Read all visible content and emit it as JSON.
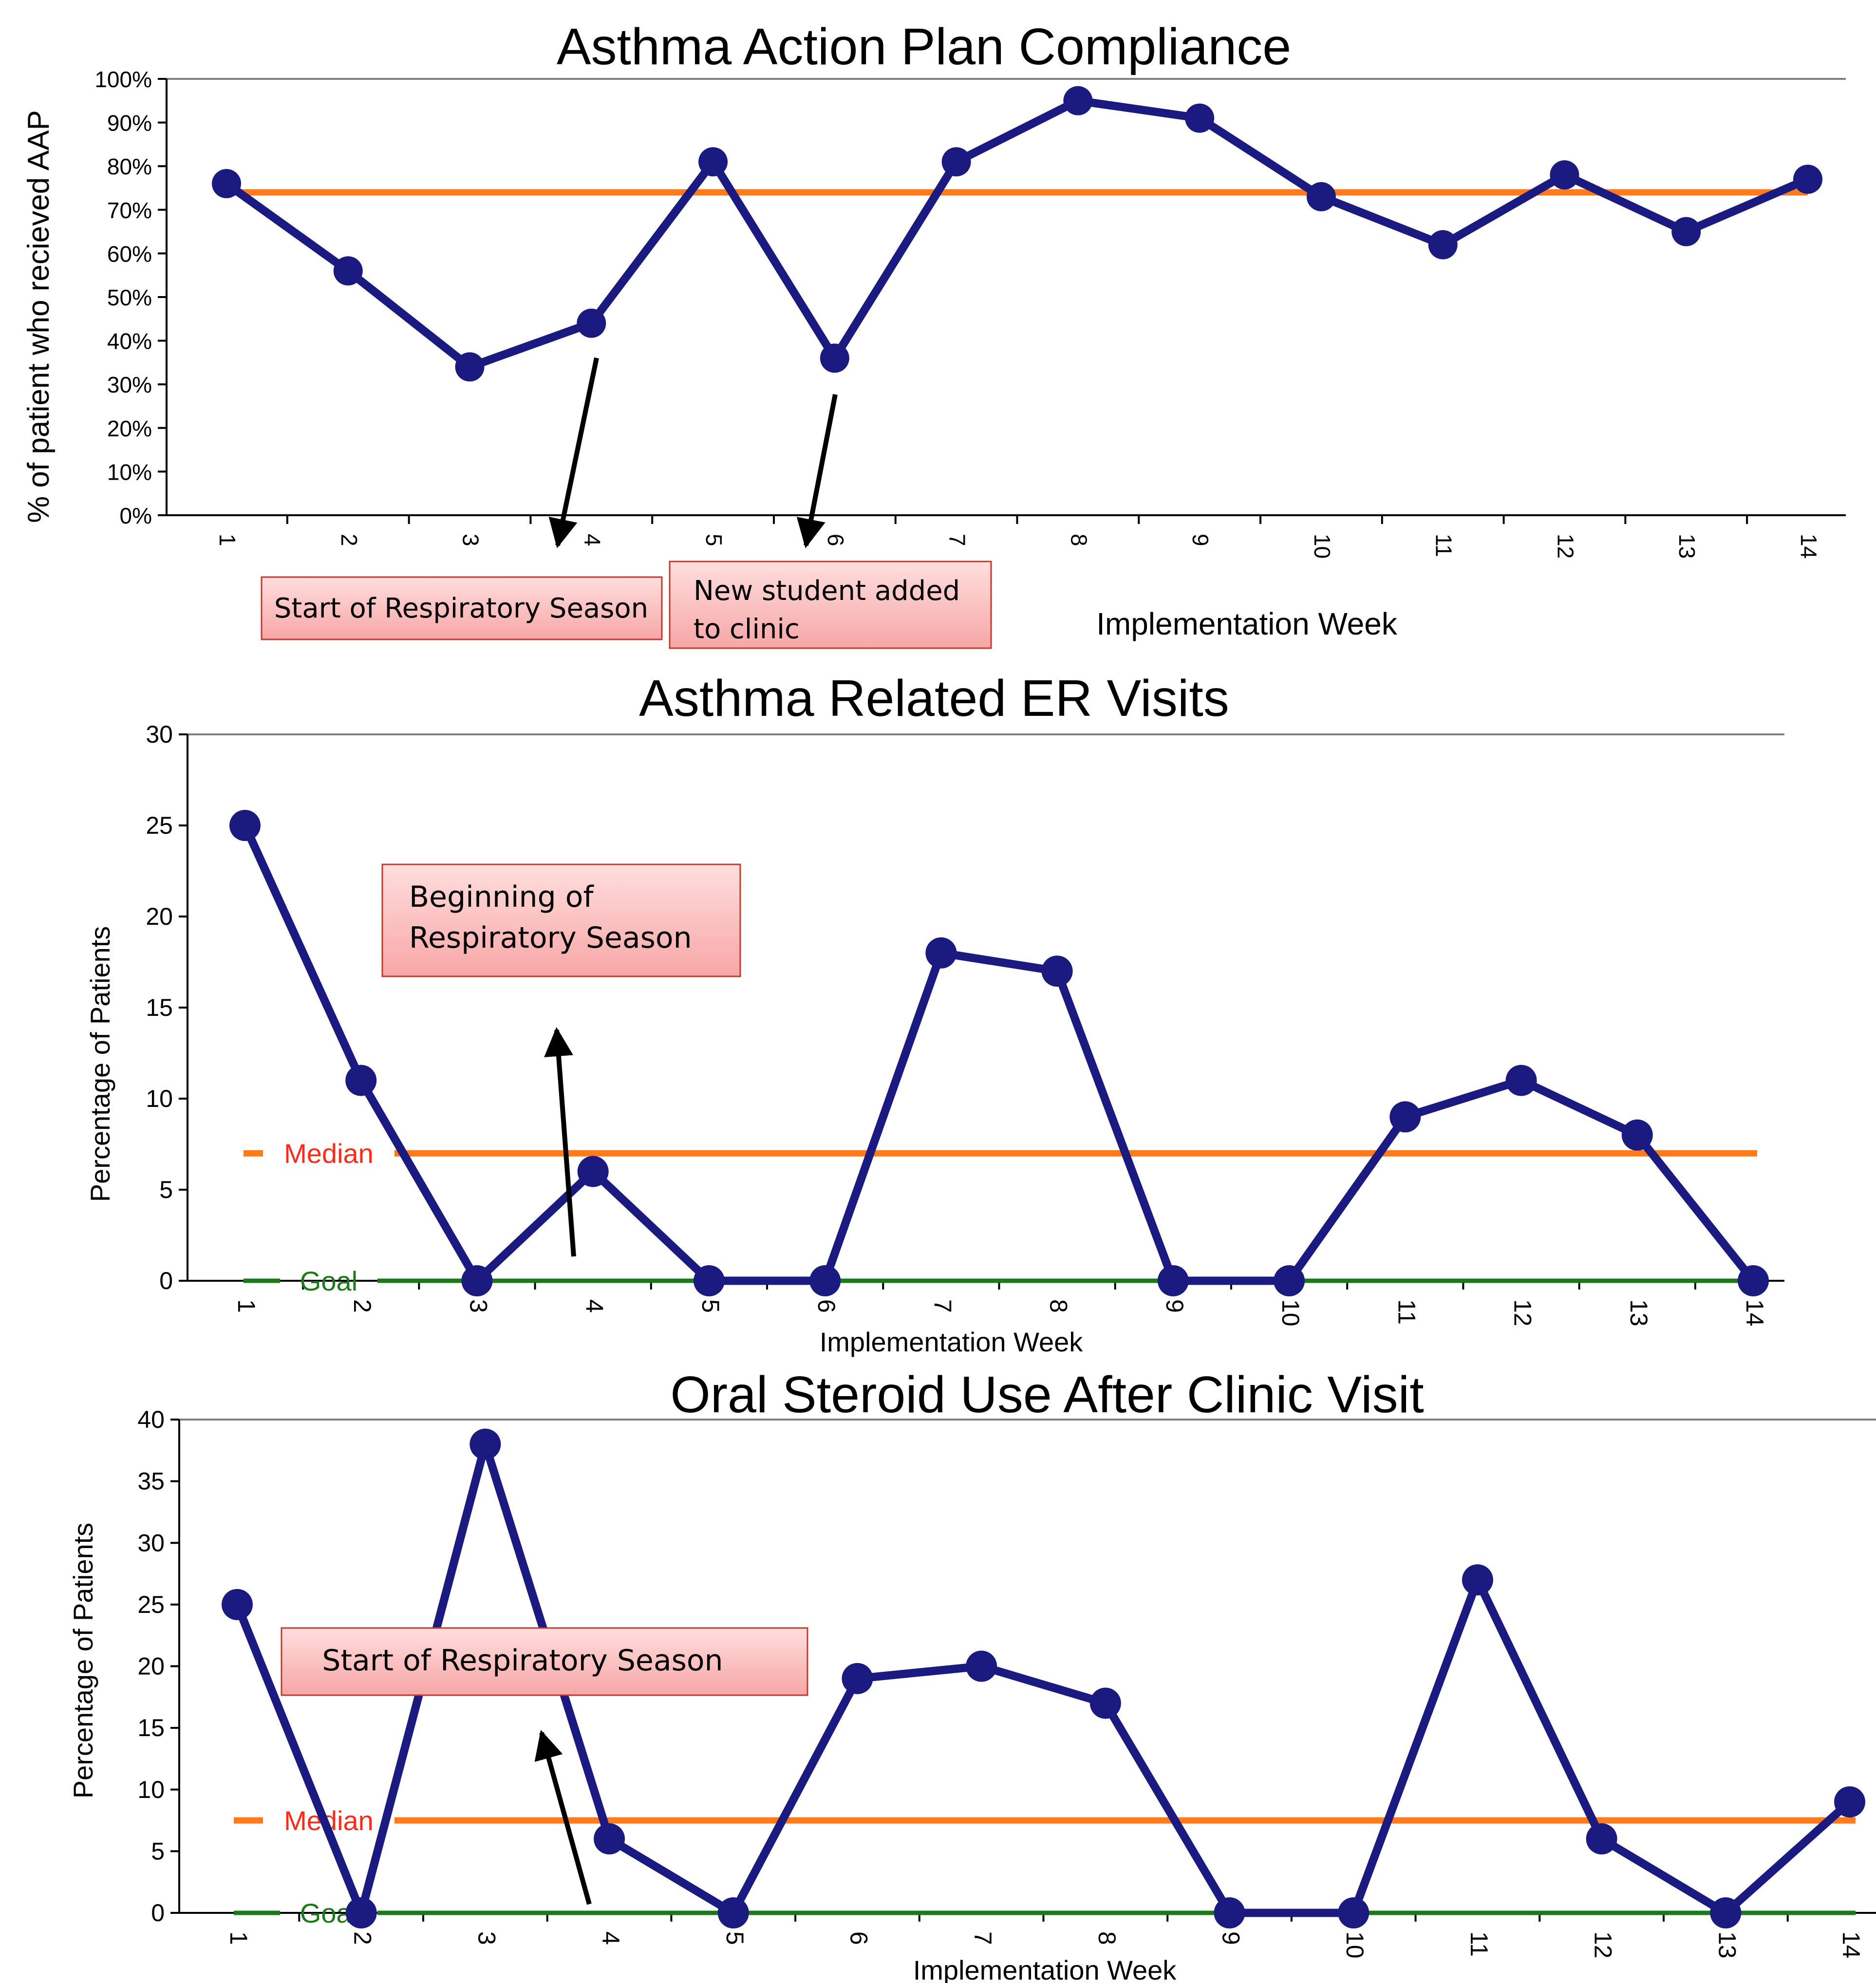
{
  "chart_data": [
    {
      "type": "line",
      "title": "Asthma Action Plan Compliance",
      "xlabel": "Implementation Week",
      "ylabel": "% of patient who recieved AAP",
      "categories": [
        "1",
        "2",
        "3",
        "4",
        "5",
        "6",
        "7",
        "8",
        "9",
        "10",
        "11",
        "12",
        "13",
        "14"
      ],
      "y_ticks": [
        "0%",
        "10%",
        "20%",
        "30%",
        "40%",
        "50%",
        "60%",
        "70%",
        "80%",
        "90%",
        "100%"
      ],
      "ylim": [
        0,
        100
      ],
      "series": [
        {
          "values": [
            76,
            56,
            34,
            44,
            81,
            36,
            81,
            95,
            91,
            73,
            62,
            78,
            65,
            77
          ],
          "color": "#1a1a80"
        }
      ],
      "reference_lines": [
        {
          "label": "",
          "value": 74,
          "color": "#ff7a1a"
        }
      ],
      "annotations": [
        {
          "text": "Start of Respiratory Season"
        },
        {
          "text": "New student added to clinic"
        }
      ]
    },
    {
      "type": "line",
      "title": "Asthma Related ER Visits",
      "xlabel": "Implementation Week",
      "ylabel": "Percentage of Patients",
      "categories": [
        "1",
        "2",
        "3",
        "4",
        "5",
        "6",
        "7",
        "8",
        "9",
        "10",
        "11",
        "12",
        "13",
        "14"
      ],
      "y_ticks": [
        "0",
        "5",
        "10",
        "15",
        "20",
        "25",
        "30"
      ],
      "ylim": [
        0,
        30
      ],
      "series": [
        {
          "values": [
            25,
            11,
            0,
            6,
            0,
            0,
            18,
            17,
            0,
            0,
            9,
            11,
            8,
            0
          ],
          "color": "#1a1a80"
        }
      ],
      "reference_lines": [
        {
          "label": "Median",
          "value": 7,
          "color": "#ff7a1a",
          "label_color": "#ff2a1a"
        },
        {
          "label": "Goal",
          "value": 0,
          "color": "#1a7a1a",
          "label_color": "#1a7a1a"
        }
      ],
      "annotations": [
        {
          "text": "Beginning of Respiratory Season"
        }
      ]
    },
    {
      "type": "line",
      "title": "Oral Steroid Use After Clinic Visit",
      "xlabel": "Implementation Week",
      "ylabel": "Percentage of Patients",
      "categories": [
        "1",
        "2",
        "3",
        "4",
        "5",
        "6",
        "7",
        "8",
        "9",
        "10",
        "11",
        "12",
        "13",
        "14"
      ],
      "y_ticks": [
        "0",
        "5",
        "10",
        "15",
        "20",
        "25",
        "30",
        "35",
        "40"
      ],
      "ylim": [
        0,
        40
      ],
      "series": [
        {
          "values": [
            25,
            0,
            38,
            6,
            0,
            19,
            20,
            17,
            0,
            0,
            27,
            6,
            0,
            9
          ],
          "color": "#1a1a80"
        }
      ],
      "reference_lines": [
        {
          "label": "Median",
          "value": 7.5,
          "color": "#ff7a1a",
          "label_color": "#ff2a1a"
        },
        {
          "label": "Goal",
          "value": 0,
          "color": "#1a7a1a",
          "label_color": "#1a7a1a"
        }
      ],
      "annotations": [
        {
          "text": "Start of Respiratory Season"
        }
      ]
    }
  ]
}
